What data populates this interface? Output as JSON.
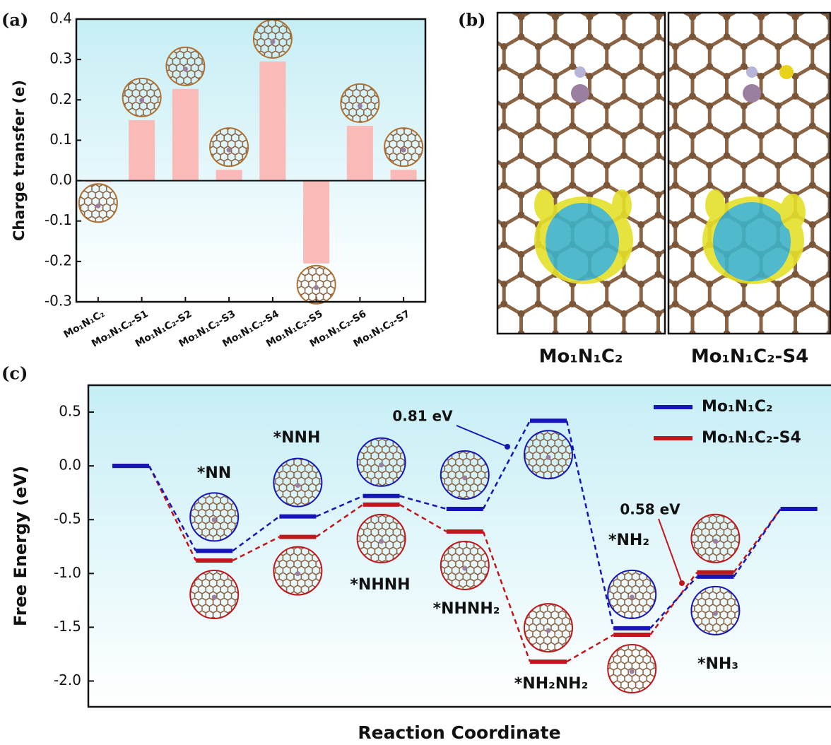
{
  "chart_data": [
    {
      "type": "bar",
      "panel_label": "(a)",
      "ylabel": "Charge transfer (e)",
      "categories": [
        "Mo₁N₁C₂",
        "Mo₁N₁C₂-S1",
        "Mo₁N₁C₂-S2",
        "Mo₁N₁C₂-S3",
        "Mo₁N₁C₂-S4",
        "Mo₁N₁C₂-S5",
        "Mo₁N₁C₂-S6",
        "Mo₁N₁C₂-S7"
      ],
      "values": [
        -0.003,
        0.15,
        0.227,
        0.027,
        0.295,
        -0.205,
        0.136,
        0.027
      ],
      "color": "#f9bab8",
      "ylim": [
        -0.3,
        0.4
      ],
      "yticks": [
        -0.3,
        -0.2,
        -0.1,
        {
          "value": 0,
          "label": "0.0"
        },
        0.1,
        0.2,
        0.3,
        0.4
      ]
    },
    {
      "type": "image",
      "panel_label": "(b)",
      "captions": [
        "Mo₁N₁C₂",
        "Mo₁N₁C₂-S4"
      ]
    },
    {
      "type": "energy_profile",
      "panel_label": "(c)",
      "ylabel": "Free Energy (eV)",
      "xlabel": "Reaction Coordinate",
      "categories": [
        null,
        "*NN",
        "*NNH",
        "*NHNH",
        "*NHNH₂",
        "*NH₂NH₂",
        "*NH₂",
        "*NH₃",
        null
      ],
      "series": [
        {
          "name": "Mo₁N₁C₂",
          "color": "#1616b8",
          "values": [
            0.0,
            -0.79,
            -0.47,
            -0.28,
            -0.4,
            0.42,
            -1.51,
            -1.03,
            -0.4
          ]
        },
        {
          "name": "Mo₁N₁C₂-S4",
          "color": "#c0161c",
          "values": [
            0.0,
            -0.88,
            -0.66,
            -0.36,
            -0.61,
            -1.82,
            -1.57,
            -0.99,
            -0.4
          ]
        }
      ],
      "annotations": [
        {
          "text": "0.81 eV",
          "color": "#1616b8"
        },
        {
          "text": "0.58 eV",
          "color": "#c0161c"
        }
      ],
      "legend": "upper right",
      "ylim": [
        -2.24,
        0.75
      ],
      "yticks": [
        {
          "value": -2,
          "label": "-2.0"
        },
        -1.5,
        {
          "value": -1,
          "label": "-1.0"
        },
        -0.5,
        {
          "value": 0,
          "label": "0.0"
        },
        0.5
      ]
    }
  ]
}
